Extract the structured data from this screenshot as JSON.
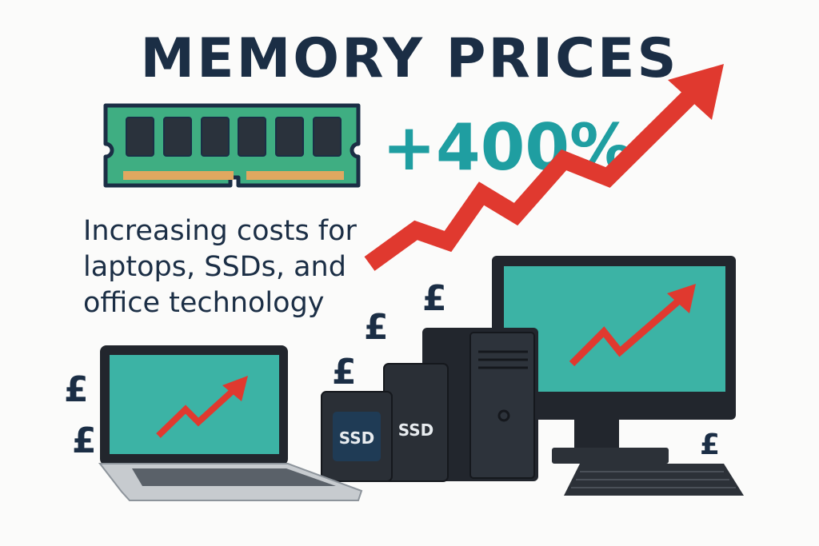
{
  "title": "MEMORY PRICES",
  "increase": "+400%",
  "subtitle_lines": [
    "Increasing costs for",
    "laptops, SSDs, and",
    "office technology"
  ],
  "currency_symbol": "£",
  "ssd_labels": [
    "SSD",
    "SSD"
  ],
  "colors": {
    "navy": "#1b2e45",
    "teal": "#1f9ea1",
    "screen": "#3cb3a5",
    "red": "#e0392f",
    "ram_green": "#3fae82",
    "device_dark": "#22262d"
  },
  "icons": [
    "ram-module-icon",
    "rising-arrow-icon",
    "laptop-icon",
    "ssd-icon",
    "desktop-tower-icon",
    "monitor-icon",
    "keyboard-icon",
    "pound-sign-icon"
  ]
}
